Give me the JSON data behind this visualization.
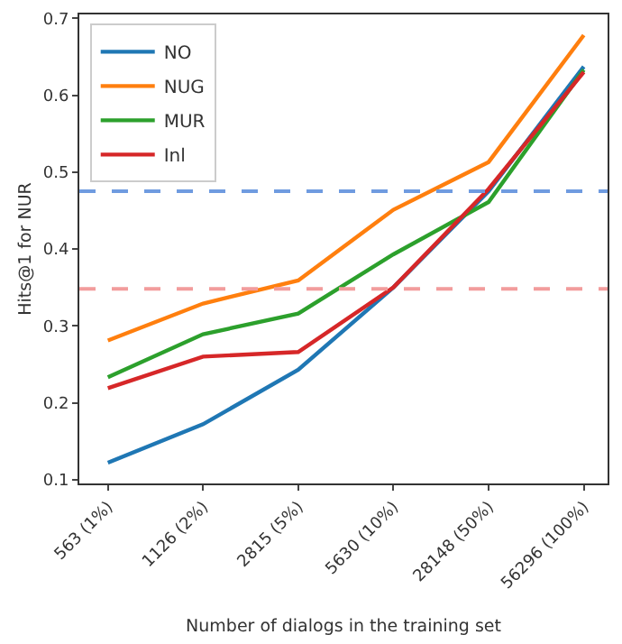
{
  "chart_data": {
    "type": "line",
    "xlabel": "Number of dialogs in the training set",
    "ylabel": "Hits@1 for NUR",
    "categories": [
      "563 (1%)",
      "1126 (2%)",
      "2815 (5%)",
      "5630 (10%)",
      "28148 (50%)",
      "56296 (100%)"
    ],
    "series": [
      {
        "name": "NO",
        "color": "#1f77b4",
        "values": [
          0.122,
          0.172,
          0.243,
          0.35,
          0.475,
          0.637
        ]
      },
      {
        "name": "NUG",
        "color": "#ff7f0e",
        "values": [
          0.281,
          0.329,
          0.359,
          0.451,
          0.513,
          0.678
        ]
      },
      {
        "name": "MUR",
        "color": "#2ca02c",
        "values": [
          0.233,
          0.289,
          0.316,
          0.393,
          0.461,
          0.633
        ]
      },
      {
        "name": "Inl",
        "color": "#d62728",
        "values": [
          0.219,
          0.26,
          0.266,
          0.35,
          0.478,
          0.63
        ]
      }
    ],
    "ref_lines": [
      {
        "axis": "y",
        "value": 0.475,
        "color": "#6f9be0",
        "line_style": "dashed"
      },
      {
        "axis": "y",
        "value": 0.348,
        "color": "#f29c9c",
        "line_style": "dashed"
      }
    ],
    "ylim": [
      0.095,
      0.705
    ],
    "yticks": [
      0.1,
      0.2,
      0.3,
      0.4,
      0.5,
      0.6,
      0.7
    ],
    "grid": false,
    "legend": "top left",
    "marker": "none",
    "line_style": "solid"
  }
}
